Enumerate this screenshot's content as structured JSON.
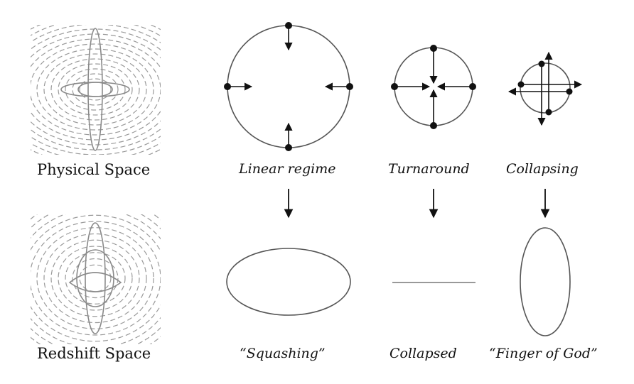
{
  "labels": {
    "physical_space": "Physical Space",
    "redshift_space": "Redshift Space",
    "linear_regime": "Linear regime",
    "turnaround": "Turnaround",
    "collapsing": "Collapsing",
    "squashing": "“Squashing”",
    "collapsed": "Collapsed",
    "finger_of_god": "“Finger of God”"
  },
  "colors": {
    "line": "#555555",
    "ink": "#111111",
    "flow": "#9a9a9a"
  }
}
